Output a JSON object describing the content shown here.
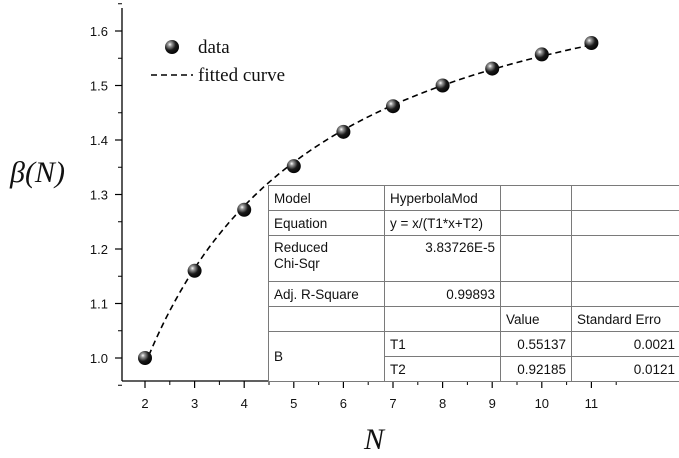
{
  "chart_data": {
    "type": "scatter",
    "x": [
      2,
      3,
      4,
      5,
      6,
      7,
      8,
      9,
      10,
      11
    ],
    "y": [
      1.0,
      1.16,
      1.272,
      1.352,
      1.415,
      1.462,
      1.5,
      1.531,
      1.557,
      1.578
    ],
    "series": [
      {
        "name": "data",
        "style": "black spheres",
        "x": [
          2,
          3,
          4,
          5,
          6,
          7,
          8,
          9,
          10,
          11
        ],
        "values": [
          1.0,
          1.16,
          1.272,
          1.352,
          1.415,
          1.462,
          1.5,
          1.531,
          1.557,
          1.578
        ]
      },
      {
        "name": "fitted curve",
        "style": "dashed line",
        "model": "y = x/(T1*x+T2)",
        "T1": 0.55137,
        "T2": 0.92185
      }
    ],
    "xlabel": "N",
    "ylabel": "β(N)",
    "xlim": [
      1.5,
      11.5
    ],
    "ylim": [
      0.95,
      1.65
    ],
    "xticks": [
      "2",
      "3",
      "4",
      "5",
      "6",
      "7",
      "8",
      "9",
      "10",
      "11"
    ],
    "yticks": [
      "1.0",
      "1.1",
      "1.2",
      "1.3",
      "1.4",
      "1.5",
      "1.6"
    ],
    "grid": false,
    "legend_position": "top-left",
    "legend": {
      "data": "data",
      "fit": "fitted curve"
    }
  },
  "fit_table": {
    "model_label": "Model",
    "model_value": "HyperbolaMod",
    "equation_label": "Equation",
    "equation_value": "y = x/(T1*x+T2)",
    "chisq_label_line1": "Reduced",
    "chisq_label_line2": "Chi-Sqr",
    "chisq_value": "3.83726E-5",
    "r2_label": "Adj. R-Square",
    "r2_value": "0.99893",
    "value_header": "Value",
    "stderr_header": "Standard Erro",
    "param_group": "B",
    "p1_name": "T1",
    "p1_value": "0.55137",
    "p1_err": "0.0021",
    "p2_name": "T2",
    "p2_value": "0.92185",
    "p2_err": "0.0121"
  }
}
